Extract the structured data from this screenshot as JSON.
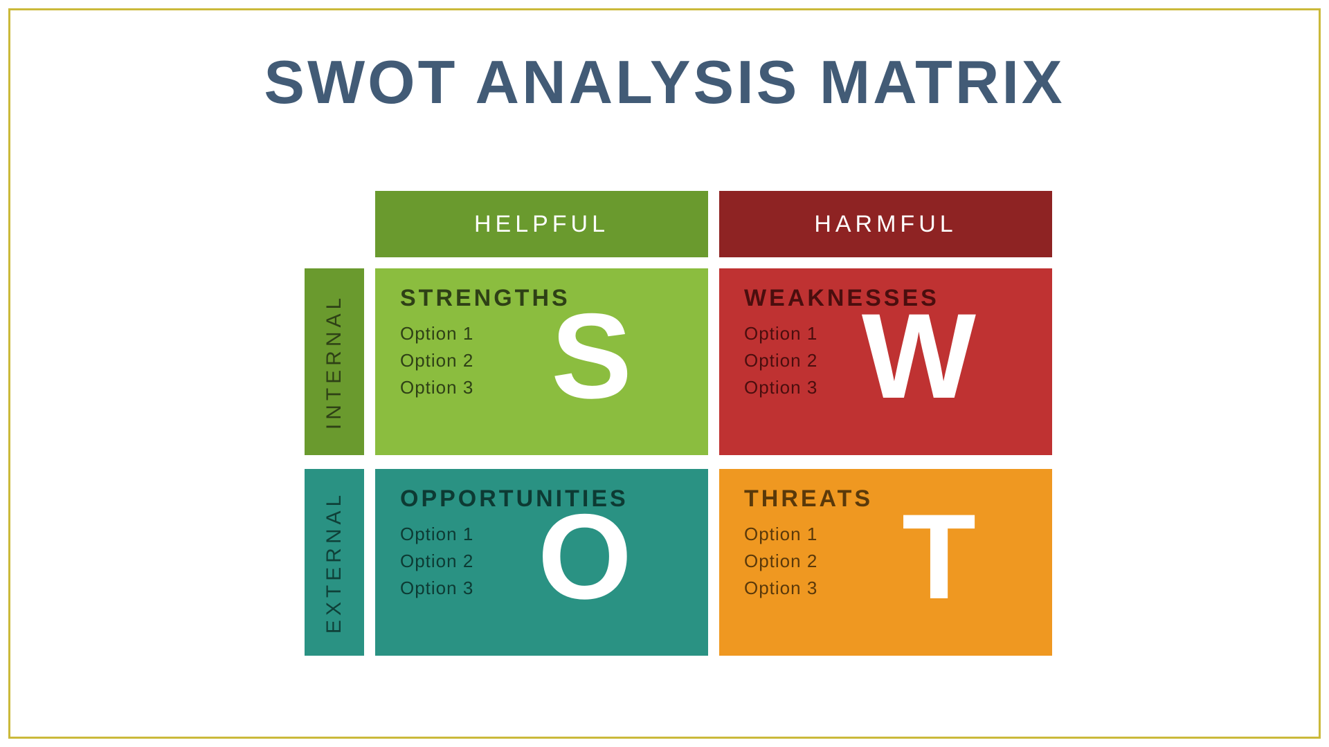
{
  "title": "SWOT ANALYSIS MATRIX",
  "title_color": "#425b76",
  "frame_border_color": "#cbb93a",
  "background_color": "#ffffff",
  "gap": 16,
  "col_headers": [
    {
      "label": "HELPFUL",
      "bg": "#6a9a2e"
    },
    {
      "label": "HARMFUL",
      "bg": "#8e2323"
    }
  ],
  "row_headers": [
    {
      "label": "INTERNAL",
      "bg": "#6a9a2e",
      "fg": "#2e4016"
    },
    {
      "label": "EXTERNAL",
      "bg": "#2a9283",
      "fg": "#0f4038"
    }
  ],
  "cells": [
    [
      {
        "title": "STRENGTHS",
        "letter": "S",
        "bg": "#8bbd3f",
        "title_color": "#2e4016",
        "opt_color": "#2e4016",
        "options": [
          "Option 1",
          "Option 2",
          "Option 3"
        ]
      },
      {
        "title": "WEAKNESSES",
        "letter": "W",
        "bg": "#bf3232",
        "title_color": "#4a0e0e",
        "opt_color": "#4a0e0e",
        "options": [
          "Option 1",
          "Option 2",
          "Option 3"
        ]
      }
    ],
    [
      {
        "title": "OPPORTUNITIES",
        "letter": "O",
        "bg": "#2a9283",
        "title_color": "#0d3a33",
        "opt_color": "#0d3a33",
        "options": [
          "Option 1",
          "Option 2",
          "Option 3"
        ]
      },
      {
        "title": "THREATS",
        "letter": "T",
        "bg": "#ef9821",
        "title_color": "#5a390a",
        "opt_color": "#5a390a",
        "options": [
          "Option 1",
          "Option 2",
          "Option 3"
        ]
      }
    ]
  ],
  "fonts": {
    "title_size": 88,
    "col_header_size": 34,
    "row_header_size": 30,
    "cell_title_size": 34,
    "option_size": 26,
    "big_letter_size": 175
  }
}
